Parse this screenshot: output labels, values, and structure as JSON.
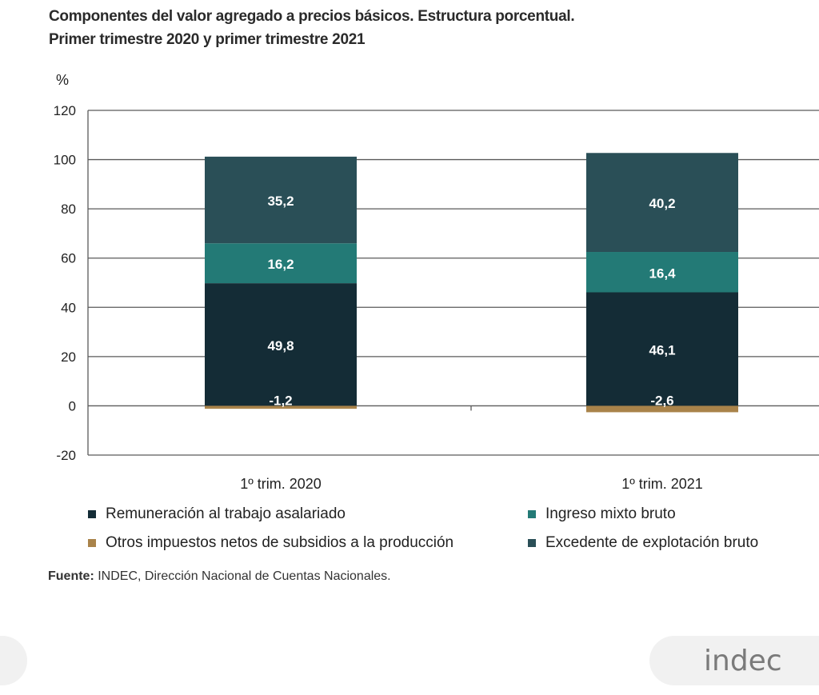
{
  "title_line1": "Componentes del valor agregado a precios básicos. Estructura porcentual.",
  "title_line2": "Primer trimestre 2020 y primer trimestre 2021",
  "source_label": "Fuente:",
  "source_text": " INDEC, Dirección Nacional de Cuentas Nacionales.",
  "logo_text": "indec",
  "chart_data": {
    "type": "bar",
    "stacked": true,
    "ylabel": "%",
    "ylim": [
      -20,
      120
    ],
    "yticks": [
      -20,
      0,
      20,
      40,
      60,
      80,
      100,
      120
    ],
    "grid": true,
    "categories": [
      "1º trim. 2020",
      "1º trim. 2021"
    ],
    "series": [
      {
        "name": "Remuneración al trabajo asalariado",
        "color": "#142c36",
        "values": [
          49.8,
          46.1
        ],
        "labels": [
          "49,8",
          "46,1"
        ]
      },
      {
        "name": "Ingreso mixto bruto",
        "color": "#237a76",
        "values": [
          16.2,
          16.4
        ],
        "labels": [
          "16,2",
          "16,4"
        ]
      },
      {
        "name": "Otros impuestos netos de subsidios a la producción",
        "color": "#a9834a",
        "values": [
          -1.2,
          -2.6
        ],
        "labels": [
          "-1,2",
          "-2,6"
        ]
      },
      {
        "name": "Excedente de explotación bruto",
        "color": "#2a4f57",
        "values": [
          35.2,
          40.2
        ],
        "labels": [
          "35,2",
          "40,2"
        ]
      }
    ],
    "legend_position": "bottom"
  }
}
